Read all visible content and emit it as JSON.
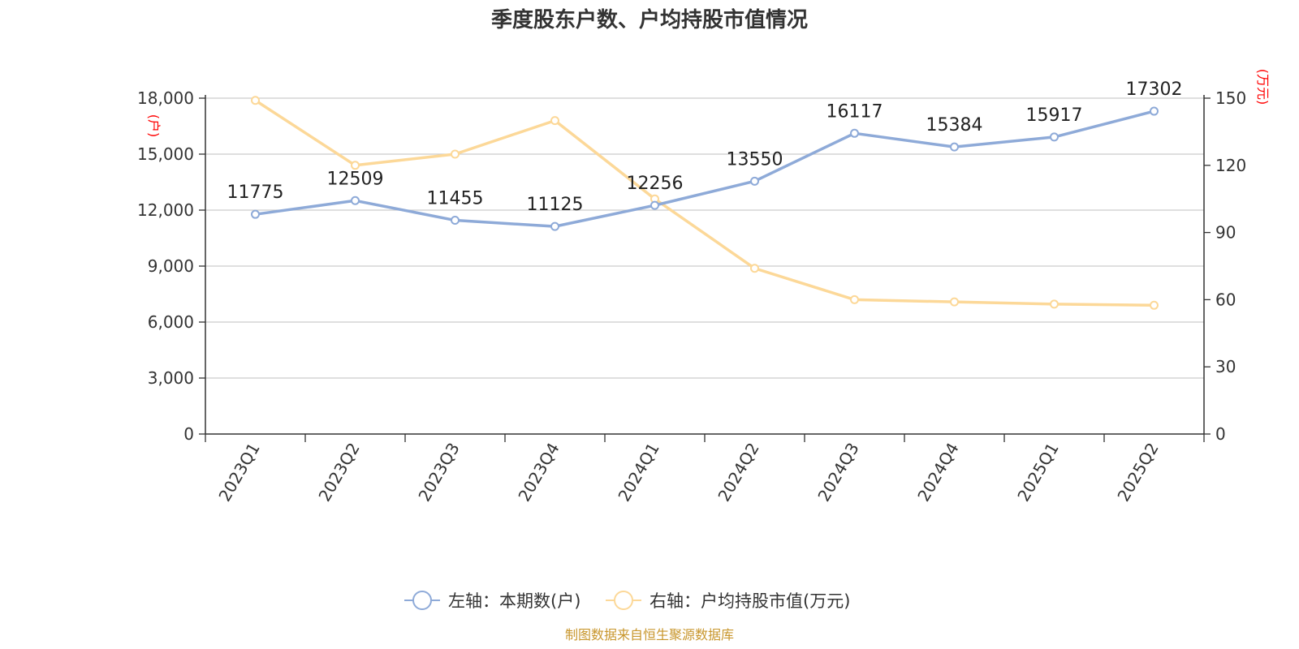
{
  "chart_data": {
    "type": "line",
    "title": "季度股东户数、户均持股市值情况",
    "categories": [
      "2023Q1",
      "2023Q2",
      "2023Q3",
      "2023Q4",
      "2024Q1",
      "2024Q2",
      "2024Q3",
      "2024Q4",
      "2025Q1",
      "2025Q2"
    ],
    "left_axis": {
      "unit": "(户)",
      "ylim": [
        0,
        18000
      ],
      "ticks": [
        0,
        3000,
        6000,
        9000,
        12000,
        15000,
        18000
      ],
      "tick_labels": [
        "0",
        "3,000",
        "6,000",
        "9,000",
        "12,000",
        "15,000",
        "18,000"
      ]
    },
    "right_axis": {
      "unit": "(万元)",
      "ylim": [
        0,
        150
      ],
      "ticks": [
        0,
        30,
        60,
        90,
        120,
        150
      ],
      "tick_labels": [
        "0",
        "30",
        "60",
        "90",
        "120",
        "150"
      ]
    },
    "series": [
      {
        "name": "左轴：本期数(户)",
        "axis": "left",
        "color": "#8eaad8",
        "values": [
          11775,
          12509,
          11455,
          11125,
          12256,
          13550,
          16117,
          15384,
          15917,
          17302
        ],
        "data_labels": [
          "11775",
          "12509",
          "11455",
          "11125",
          "12256",
          "13550",
          "16117",
          "15384",
          "15917",
          "17302"
        ]
      },
      {
        "name": "右轴：户均持股市值(万元)",
        "axis": "right",
        "color": "#fcd898",
        "values": [
          149,
          120,
          125,
          140,
          105,
          74,
          60,
          59,
          58,
          57.5
        ]
      }
    ],
    "grid": true,
    "legend": "bottom-center",
    "source": "制图数据来自恒生聚源数据库"
  }
}
